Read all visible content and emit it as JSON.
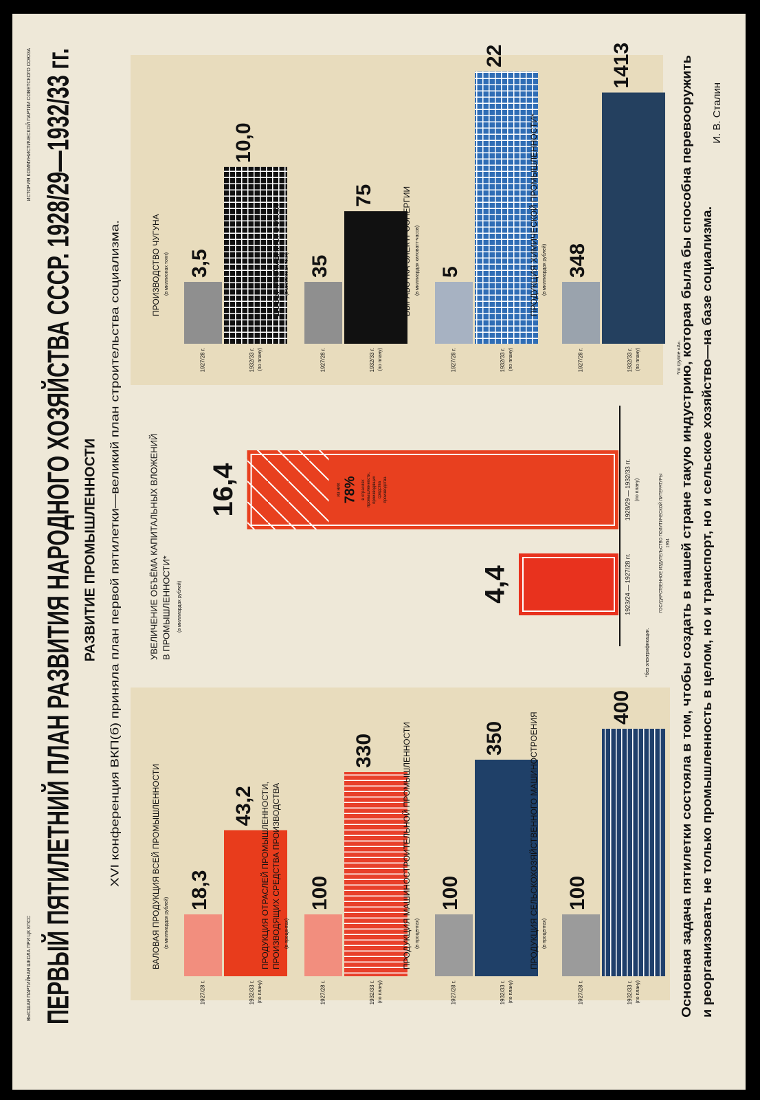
{
  "header": {
    "top_note_left": "ВЫСШАЯ ПАРТИЙНАЯ ШКОЛА ПРИ ЦК КПСС",
    "top_note_right": "ИСТОРИЯ КОММУНИСТИЧЕСКОЙ ПАРТИИ СОВЕТСКОГО СОЮЗА",
    "title": "ПЕРВЫЙ ПЯТИЛЕТНИЙ ПЛАН РАЗВИТИЯ НАРОДНОГО ХОЗЯЙСТВА СССР. 1928/29—1932/33 гг.",
    "subtitle": "РАЗВИТИЕ ПРОМЫШЛЕННОСТИ",
    "resolution": "XVI конференция ВКП(б) приняла план первой пятилетки—великий план строительства социализма."
  },
  "chart_data": [
    {
      "type": "bar",
      "horizontal": true,
      "title": [
        "ВАЛОВАЯ ПРОДУКЦИЯ ВСЕЙ ПРОМЫШЛЕННОСТИ"
      ],
      "subtitle": "(в миллиардах рублей)",
      "categories": [
        "1927/28 г.",
        "1932/33 г."
      ],
      "plan_note": "(по плану)",
      "values": [
        18.3,
        43.2
      ],
      "value_labels": [
        "18,3",
        "43,2"
      ],
      "colors": [
        "#f28e7e",
        "#e83c1c"
      ]
    },
    {
      "type": "bar",
      "horizontal": true,
      "title": [
        "ПРОДУКЦИЯ ОТРАСЛЕЙ ПРОМЫШЛЕННОСТИ,",
        "ПРОИЗВОДЯЩИХ СРЕДСТВА ПРОИЗВОДСТВА"
      ],
      "subtitle": "(в процентах)",
      "categories": [
        "1927/28 г.",
        "1932/33 г."
      ],
      "plan_note": "(по плану)",
      "values": [
        100,
        330
      ],
      "colors": [
        "#f28e7e",
        "#e8402a"
      ],
      "pattern": "vstripes"
    },
    {
      "type": "bar",
      "horizontal": true,
      "title": [
        "ПРОДУКЦИЯ МАШИНОСТРОИТЕЛЬНОЙ ПРОМЫШЛЕННОСТИ"
      ],
      "subtitle": "(в процентах)",
      "categories": [
        "1927/28 г.",
        "1932/33 г."
      ],
      "plan_note": "(по плану)",
      "values": [
        100,
        350
      ],
      "colors": [
        "#9b9b9b",
        "#1f4068"
      ]
    },
    {
      "type": "bar",
      "horizontal": true,
      "title": [
        "ПРОДУКЦИЯ СЕЛЬСКОХОЗЯЙСТВЕННОГО МАШИНОСТРОЕНИЯ"
      ],
      "subtitle": "(в процентах)",
      "categories": [
        "1927/28 г.",
        "1932/33 г."
      ],
      "plan_note": "(по плану)",
      "values": [
        100,
        400
      ],
      "colors": [
        "#9b9b9b",
        "#1f3f6b"
      ],
      "pattern": "hstripes"
    },
    {
      "type": "bar",
      "horizontal": false,
      "title": [
        "УВЕЛИЧЕНИЕ ОБЪЁМА КАПИТАЛЬНЫХ ВЛОЖЕНИЙ",
        "В ПРОМЫШЛЕННОСТИ*"
      ],
      "subtitle": "(в миллиардах рублей)",
      "categories": [
        "1923/24 — 1927/28 гг.",
        "1928/29 — 1932/33 гг."
      ],
      "plan_note": "(по плану)",
      "values": [
        4.4,
        16.4
      ],
      "value_labels": [
        "4,4",
        "16,4"
      ],
      "colors": [
        "#e8321e",
        "#e8401f"
      ],
      "pattern": "hatch",
      "annotation": {
        "prefix": "из них",
        "value": 78,
        "label": "78%",
        "text_lines": [
          "в отраслях",
          "промышленности,",
          "производящих",
          "средства",
          "производства"
        ]
      },
      "footnote": "*без электрификации."
    },
    {
      "type": "bar",
      "horizontal": true,
      "title": [
        "ПРОИЗВОДСТВО ЧУГУНА"
      ],
      "subtitle": "(в миллионах тонн)",
      "categories": [
        "1927/28 г.",
        "1932/33 г."
      ],
      "plan_note": "(по плану)",
      "values": [
        3.5,
        10.0
      ],
      "value_labels": [
        "3,5",
        "10,0"
      ],
      "colors": [
        "#8f8f8f",
        "#111111"
      ],
      "pattern": "grid"
    },
    {
      "type": "bar",
      "horizontal": true,
      "title": [
        "ДОБЫЧА КАМЕННОГО УГЛЯ"
      ],
      "subtitle": "(в миллионах тонн)",
      "categories": [
        "1927/28 г.",
        "1932/33 г."
      ],
      "plan_note": "(по плану)",
      "values": [
        35,
        75
      ],
      "colors": [
        "#8f8f8f",
        "#111111"
      ]
    },
    {
      "type": "bar",
      "horizontal": true,
      "title": [
        "ВЫРАБОТКА ЭЛЕКТРОЭНЕРГИИ"
      ],
      "subtitle": "(в миллиардах киловатт-часов)",
      "categories": [
        "1927/28 г.",
        "1932/33 г."
      ],
      "plan_note": "(по плану)",
      "values": [
        5,
        22
      ],
      "colors": [
        "#a7b2c2",
        "#2f6db5"
      ],
      "pattern": "grid"
    },
    {
      "type": "bar",
      "horizontal": true,
      "title": [
        "ПРОДУКЦИЯ ХИМИЧЕСКОЙ ПРОМЫШЛЕННОСТИ*"
      ],
      "subtitle": "(в миллиардах рублей)",
      "categories": [
        "1927/28 г.",
        "1932/33 г."
      ],
      "plan_note": "(по плану)",
      "values": [
        348,
        1413
      ],
      "colors": [
        "#9aa3ad",
        "#24405f"
      ],
      "footnote": "*по группе «А»."
    }
  ],
  "footer": {
    "quote_lines": [
      "Основная задача пятилетки состояла в том, чтобы создать в нашей стране такую индустрию, которая была бы способна перевооружить",
      "и реорганизовать не только промышленность в целом, но и транспорт, но и сельское хозяйство—на базе социализма."
    ],
    "author": "И. В. Сталин",
    "publisher": [
      "ГОСУДАРСТВЕННОЕ ИЗДАТЕЛЬСТВО ПОЛИТИЧЕСКОЙ ЛИТЕРАТУРЫ",
      "1954"
    ]
  }
}
